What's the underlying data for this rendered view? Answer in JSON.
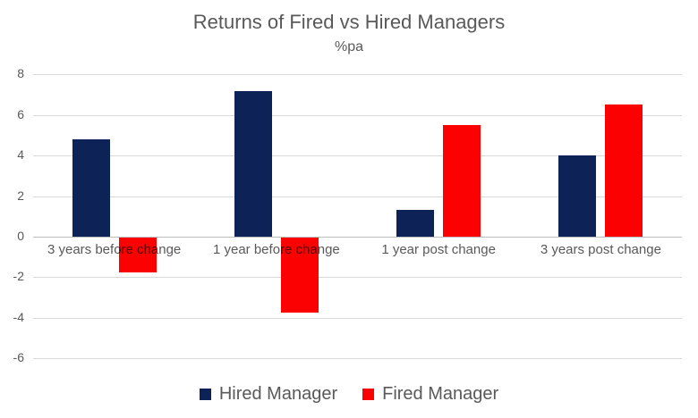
{
  "chart": {
    "title": "Returns of Fired vs Hired Managers",
    "subtitle": "%pa"
  },
  "chart_data": {
    "type": "bar",
    "title": "Returns of Fired vs Hired Managers",
    "subtitle": "%pa",
    "categories": [
      "3 years before change",
      "1 year before change",
      "1 year post change",
      "3 years post change"
    ],
    "series": [
      {
        "name": "Hired Manager",
        "color": "#0d2257",
        "values": [
          4.8,
          7.2,
          1.3,
          4.0
        ]
      },
      {
        "name": "Fired Manager",
        "color": "#fc0101",
        "values": [
          -1.7,
          -3.7,
          5.5,
          6.5
        ]
      }
    ],
    "ylim": [
      -6,
      8
    ],
    "yticks": [
      8,
      6,
      4,
      2,
      0,
      -2,
      -4,
      -6
    ],
    "grid": true,
    "legend_position": "bottom",
    "colors": {
      "text": "#595959",
      "gridline": "#d9d9d9",
      "zero_line": "#bfbfbf",
      "background": "#ffffff"
    }
  }
}
